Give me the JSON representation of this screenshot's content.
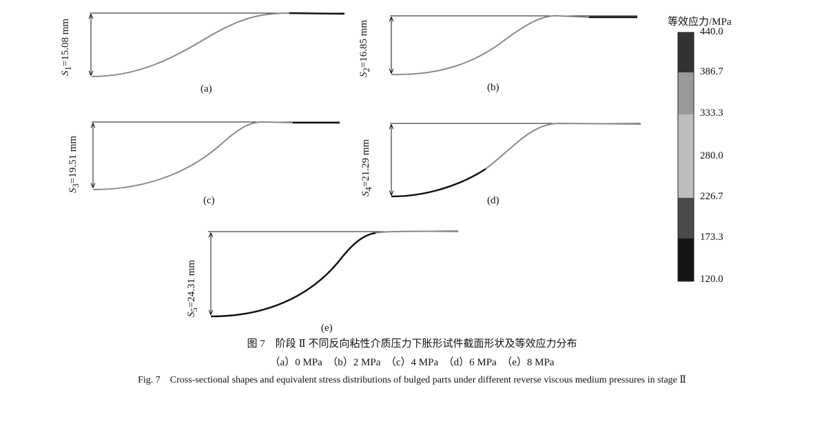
{
  "panels": [
    {
      "id": "a",
      "label": "(a)",
      "sub": "1",
      "value": "=15.08 mm"
    },
    {
      "id": "b",
      "label": "(b)",
      "sub": "2",
      "value": "=16.85 mm"
    },
    {
      "id": "c",
      "label": "(c)",
      "sub": "3",
      "value": "=19.51 mm"
    },
    {
      "id": "d",
      "label": "(d)",
      "sub": "4",
      "value": "=21.29 mm"
    },
    {
      "id": "e",
      "label": "(e)",
      "sub": "5",
      "value": "=24.31 mm"
    }
  ],
  "symbol": "S",
  "colorbar": {
    "title": "等效应力/MPa",
    "ticks": [
      "440.0",
      "386.7",
      "333.3",
      "280.0",
      "226.7",
      "173.3",
      "120.0"
    ],
    "colors": [
      "#333333",
      "#9a9a9a",
      "#bdbdbd",
      "#bdbdbd",
      "#4a4a4a",
      "#151515"
    ]
  },
  "caption": {
    "cn": "图 7　阶段 Ⅱ 不同反向粘性介质压力下胀形试件截面形状及等效应力分布",
    "sub": "（a）0 MPa　（b）2 MPa　（c）4 MPa　（d）6 MPa　（e）8 MPa",
    "en": "Fig. 7　Cross-sectional shapes and equivalent stress distributions of bulged parts under different reverse viscous medium pressures in stage Ⅱ"
  }
}
